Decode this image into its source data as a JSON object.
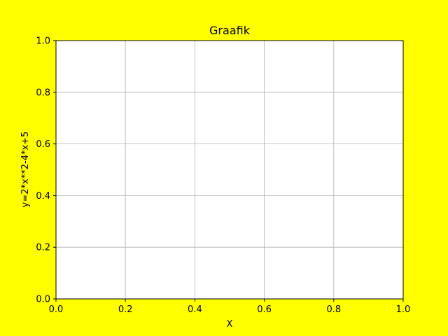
{
  "colors": {
    "figure_background": "#ffff00",
    "axes_background": "#ffffff",
    "grid": "#b0b0b0",
    "axis": "#000000"
  },
  "chart_data": {
    "type": "line",
    "title": "Graafik",
    "xlabel": "X",
    "ylabel": "y=2*x**2-4*x+5",
    "xlim": [
      0.0,
      1.0
    ],
    "ylim": [
      0.0,
      1.0
    ],
    "x_ticks": [
      0.0,
      0.2,
      0.4,
      0.6,
      0.8,
      1.0
    ],
    "x_tick_labels": [
      "0.0",
      "0.2",
      "0.4",
      "0.6",
      "0.8",
      "1.0"
    ],
    "y_ticks": [
      0.0,
      0.2,
      0.4,
      0.6,
      0.8,
      1.0
    ],
    "y_tick_labels": [
      "0.0",
      "0.2",
      "0.4",
      "0.6",
      "0.8",
      "1.0"
    ],
    "grid": true,
    "series": []
  }
}
